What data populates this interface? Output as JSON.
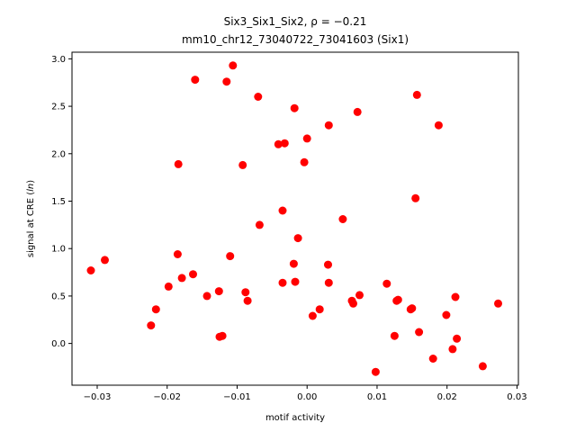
{
  "chart_data": {
    "type": "scatter",
    "title_line1": "Six3_Six1_Six2, ρ = −0.21",
    "title_line2": "mm10_chr12_73040722_73041603 (Six1)",
    "xlabel": "motif activity",
    "ylabel": "signal at CRE (ln)",
    "ylabel_prefix": "signal at CRE (",
    "ylabel_italic": "ln",
    "ylabel_suffix": ")",
    "xlim": [
      -0.0336,
      0.0302
    ],
    "ylim": [
      -0.44,
      3.07
    ],
    "xticks": [
      -0.03,
      -0.02,
      -0.01,
      0.0,
      0.01,
      0.02,
      0.03
    ],
    "xtick_labels": [
      "−0.03",
      "−0.02",
      "−0.01",
      "0.00",
      "0.01",
      "0.02",
      "0.03"
    ],
    "yticks": [
      0.0,
      0.5,
      1.0,
      1.5,
      2.0,
      2.5,
      3.0
    ],
    "ytick_labels": [
      "0.0",
      "0.5",
      "1.0",
      "1.5",
      "2.0",
      "2.5",
      "3.0"
    ],
    "point_color": "#ff0000",
    "points": [
      [
        -0.0309,
        0.77
      ],
      [
        -0.0289,
        0.88
      ],
      [
        -0.0223,
        0.19
      ],
      [
        -0.0216,
        0.36
      ],
      [
        -0.0198,
        0.6
      ],
      [
        -0.0185,
        0.94
      ],
      [
        -0.0184,
        1.89
      ],
      [
        -0.0179,
        0.69
      ],
      [
        -0.0163,
        0.73
      ],
      [
        -0.016,
        2.78
      ],
      [
        -0.0143,
        0.5
      ],
      [
        -0.0126,
        0.55
      ],
      [
        -0.0125,
        0.07
      ],
      [
        -0.0121,
        0.08
      ],
      [
        -0.0115,
        2.76
      ],
      [
        -0.011,
        0.92
      ],
      [
        -0.0106,
        2.93
      ],
      [
        -0.0092,
        1.88
      ],
      [
        -0.0088,
        0.54
      ],
      [
        -0.0085,
        0.45
      ],
      [
        -0.007,
        2.6
      ],
      [
        -0.0068,
        1.25
      ],
      [
        -0.0041,
        2.1
      ],
      [
        -0.0035,
        1.4
      ],
      [
        -0.0035,
        0.64
      ],
      [
        -0.0032,
        2.11
      ],
      [
        -0.0019,
        0.84
      ],
      [
        -0.0018,
        2.48
      ],
      [
        -0.0017,
        0.65
      ],
      [
        -0.0013,
        1.11
      ],
      [
        -0.0004,
        1.91
      ],
      [
        0.0,
        2.16
      ],
      [
        0.0008,
        0.29
      ],
      [
        0.0018,
        0.36
      ],
      [
        0.003,
        0.83
      ],
      [
        0.0031,
        2.3
      ],
      [
        0.0031,
        0.64
      ],
      [
        0.0051,
        1.31
      ],
      [
        0.0064,
        0.45
      ],
      [
        0.0066,
        0.42
      ],
      [
        0.0072,
        2.44
      ],
      [
        0.0075,
        0.51
      ],
      [
        0.0098,
        -0.3
      ],
      [
        0.0114,
        0.63
      ],
      [
        0.0125,
        0.08
      ],
      [
        0.0128,
        0.45
      ],
      [
        0.013,
        0.46
      ],
      [
        0.0148,
        0.36
      ],
      [
        0.015,
        0.37
      ],
      [
        0.0155,
        1.53
      ],
      [
        0.0157,
        2.62
      ],
      [
        0.016,
        0.12
      ],
      [
        0.018,
        -0.16
      ],
      [
        0.0188,
        2.3
      ],
      [
        0.0199,
        0.3
      ],
      [
        0.0208,
        -0.06
      ],
      [
        0.0212,
        0.49
      ],
      [
        0.0214,
        0.05
      ],
      [
        0.0251,
        -0.24
      ],
      [
        0.0273,
        0.42
      ]
    ]
  }
}
